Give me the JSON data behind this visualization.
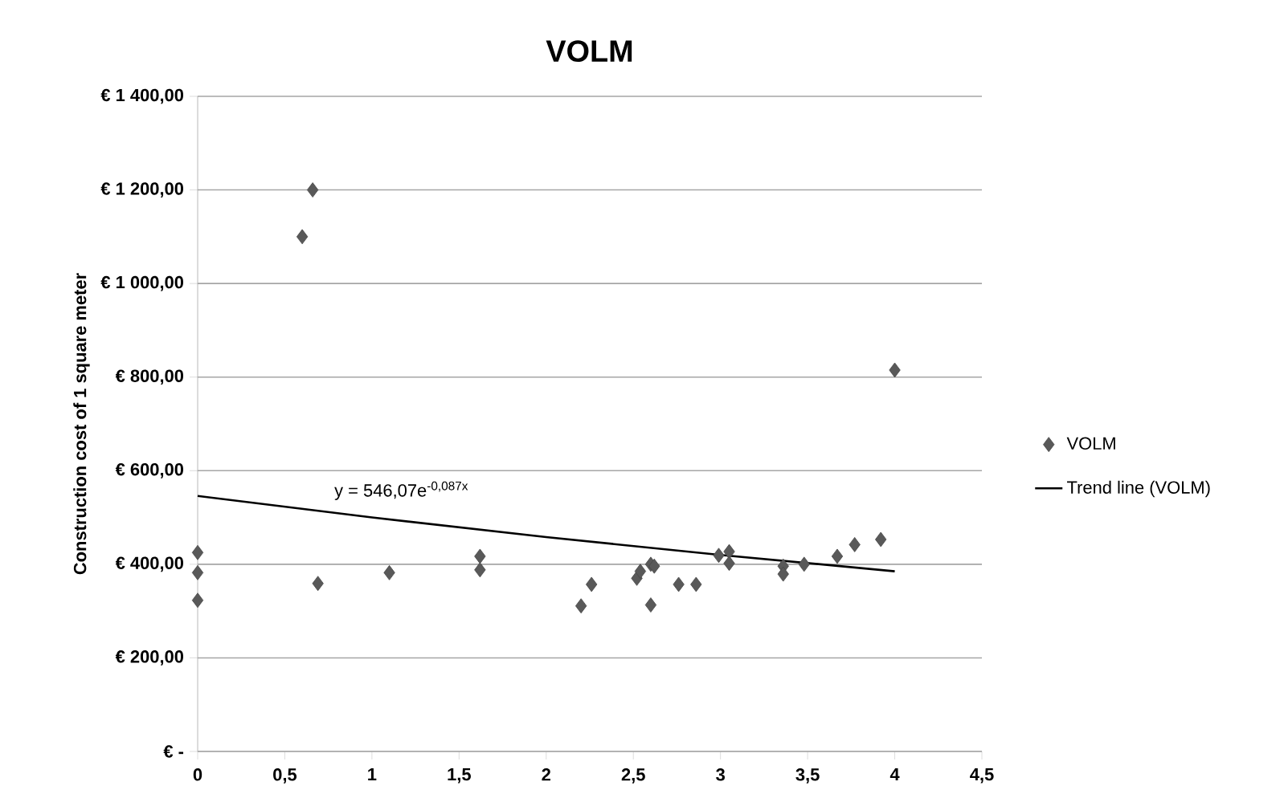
{
  "chart_data": {
    "type": "scatter",
    "title": "VOLM",
    "ylabel": "Construction cost of 1 square meter",
    "series": [
      {
        "name": "VOLM",
        "color": "#595959",
        "marker": "diamond",
        "x": [
          0,
          0,
          0,
          0.6,
          0.66,
          0.69,
          1.1,
          1.62,
          1.62,
          2.2,
          2.26,
          2.52,
          2.54,
          2.6,
          2.6,
          2.62,
          2.76,
          2.86,
          2.99,
          3.05,
          3.05,
          3.36,
          3.36,
          3.48,
          3.67,
          3.77,
          3.92,
          4.0
        ],
        "values": [
          425,
          382,
          323,
          1100,
          1200,
          359,
          382,
          417,
          388,
          311,
          357,
          370,
          385,
          400,
          313,
          396,
          357,
          357,
          419,
          427,
          402,
          396,
          379,
          400,
          417,
          442,
          453,
          815
        ]
      },
      {
        "name": "Trend line (VOLM)",
        "type": "line",
        "color": "#000000",
        "line_style": "solid",
        "x": [
          0,
          1,
          2,
          3,
          4
        ],
        "values": [
          546,
          500,
          458,
          420,
          385
        ]
      }
    ],
    "xlim": [
      0,
      4.5
    ],
    "xticks": [
      0,
      {
        "value": 0.5,
        "label": "0,5"
      },
      1,
      {
        "value": 1.5,
        "label": "1,5"
      },
      2,
      {
        "value": 2.5,
        "label": "2,5"
      },
      3,
      {
        "value": 3.5,
        "label": "3,5"
      },
      4,
      {
        "value": 4.5,
        "label": "4,5"
      }
    ],
    "ylim": [
      0,
      1400
    ],
    "yticks": [
      {
        "value": 0,
        "label": "€ -"
      },
      {
        "value": 200,
        "label": "€ 200,00"
      },
      {
        "value": 400,
        "label": "€ 400,00"
      },
      {
        "value": 600,
        "label": "€ 600,00"
      },
      {
        "value": 800,
        "label": "€ 800,00"
      },
      {
        "value": 1000,
        "label": "€ 1 000,00"
      },
      {
        "value": 1200,
        "label": "€ 1 200,00"
      },
      {
        "value": 1400,
        "label": "€ 1 400,00"
      }
    ],
    "grid": "y",
    "legend": "right",
    "annotations": [
      "y = 546,07e$^{-0,087x}$"
    ]
  }
}
